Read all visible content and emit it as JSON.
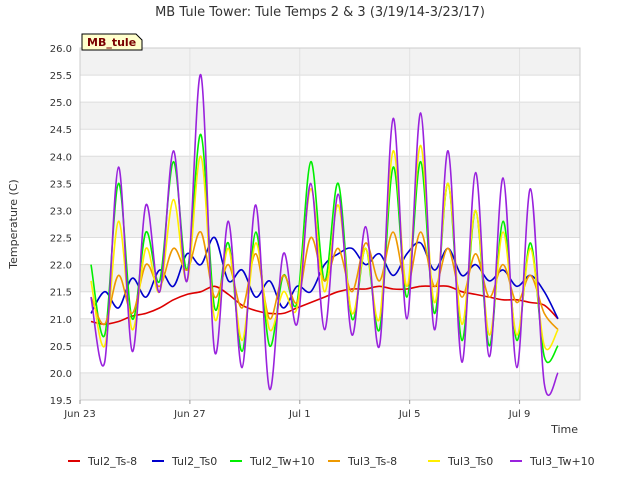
{
  "chart_data": {
    "type": "line",
    "title": "MB Tule Tower: Tule Temps 2 & 3 (3/19/14-3/23/17)",
    "badge": "MB_tule",
    "xlabel": "Time",
    "ylabel": "Temperature (C)",
    "ylim": [
      19.5,
      26.0
    ],
    "yticks": [
      19.5,
      20.0,
      20.5,
      21.0,
      21.5,
      22.0,
      22.5,
      23.0,
      23.5,
      24.0,
      24.5,
      25.0,
      25.5,
      26.0
    ],
    "ytick_labels": [
      "19.5",
      "20.0",
      "20.5",
      "21.0",
      "21.5",
      "22.0",
      "22.5",
      "23.0",
      "23.5",
      "24.0",
      "24.5",
      "25.0",
      "25.5",
      "26.0"
    ],
    "xlim": [
      0,
      18.2
    ],
    "xticks": [
      0,
      4,
      8,
      12,
      16
    ],
    "xtick_labels": [
      "Jun 23",
      "Jun 27",
      "Jul 1",
      "Jul 5",
      "Jul 9"
    ],
    "grid": true,
    "legend_position": "bottom",
    "series_x": [
      0.4,
      0.9,
      1.4,
      1.9,
      2.4,
      2.9,
      3.4,
      3.9,
      4.4,
      4.9,
      5.4,
      5.9,
      6.4,
      6.9,
      7.4,
      7.9,
      8.4,
      8.9,
      9.4,
      9.9,
      10.4,
      10.9,
      11.4,
      11.9,
      12.4,
      12.9,
      13.4,
      13.9,
      14.4,
      14.9,
      15.4,
      15.9,
      16.4,
      16.9,
      17.4
    ],
    "series": [
      {
        "name": "Tul2_Ts-8",
        "color": "#dd0000",
        "values": [
          20.95,
          20.9,
          20.95,
          21.05,
          21.1,
          21.2,
          21.35,
          21.45,
          21.5,
          21.6,
          21.45,
          21.25,
          21.15,
          21.1,
          21.1,
          21.2,
          21.3,
          21.4,
          21.5,
          21.55,
          21.55,
          21.6,
          21.55,
          21.55,
          21.6,
          21.6,
          21.6,
          21.5,
          21.45,
          21.4,
          21.35,
          21.35,
          21.3,
          21.25,
          21.0
        ]
      },
      {
        "name": "Tul2_Ts0",
        "color": "#0000cc",
        "values": [
          21.1,
          21.5,
          21.2,
          21.75,
          21.4,
          21.9,
          21.6,
          22.2,
          22.0,
          22.5,
          21.7,
          21.9,
          21.4,
          21.7,
          21.2,
          21.6,
          21.5,
          22.0,
          22.2,
          22.3,
          22.0,
          22.2,
          21.8,
          22.2,
          22.4,
          21.9,
          22.3,
          21.8,
          22.0,
          21.7,
          21.9,
          21.6,
          21.8,
          21.5,
          21.0
        ]
      },
      {
        "name": "Tul2_Tw+10",
        "color": "#00ee00",
        "values": [
          22.0,
          20.7,
          23.5,
          21.0,
          22.6,
          21.7,
          23.9,
          21.9,
          24.4,
          21.2,
          22.4,
          20.4,
          22.6,
          20.5,
          21.8,
          21.3,
          23.9,
          21.7,
          23.5,
          21.0,
          22.3,
          20.8,
          23.8,
          21.4,
          23.9,
          21.1,
          23.5,
          20.6,
          23.0,
          20.5,
          22.8,
          20.6,
          22.4,
          20.3,
          20.5
        ]
      },
      {
        "name": "Tul3_Ts-8",
        "color": "#ee9900",
        "values": [
          21.4,
          20.9,
          21.8,
          21.1,
          22.0,
          21.6,
          22.3,
          21.9,
          22.6,
          21.4,
          22.0,
          21.2,
          22.2,
          21.0,
          21.8,
          21.3,
          22.5,
          21.7,
          22.3,
          21.5,
          22.4,
          21.7,
          22.6,
          21.6,
          22.6,
          21.6,
          22.3,
          21.4,
          22.2,
          21.4,
          22.0,
          21.3,
          21.8,
          21.1,
          20.8
        ]
      },
      {
        "name": "Tul3_Ts0",
        "color": "#ffee00",
        "values": [
          21.7,
          20.5,
          22.8,
          20.8,
          22.3,
          21.5,
          23.2,
          21.7,
          24.0,
          21.0,
          22.3,
          20.6,
          22.4,
          20.8,
          21.5,
          21.2,
          23.4,
          21.5,
          23.1,
          21.1,
          22.3,
          21.0,
          24.1,
          21.6,
          24.2,
          21.3,
          23.5,
          20.9,
          23.0,
          20.7,
          22.6,
          20.7,
          22.3,
          20.5,
          20.8
        ]
      },
      {
        "name": "Tul3_Tw+10",
        "color": "#9922dd",
        "values": [
          21.4,
          20.2,
          23.8,
          20.4,
          23.1,
          21.5,
          24.1,
          21.7,
          25.5,
          20.4,
          22.8,
          20.1,
          23.1,
          19.7,
          22.2,
          20.9,
          23.5,
          20.8,
          23.3,
          20.7,
          22.7,
          20.5,
          24.7,
          21.0,
          24.8,
          20.8,
          24.1,
          20.2,
          23.7,
          20.3,
          23.6,
          20.1,
          23.4,
          19.8,
          20.0
        ]
      }
    ]
  }
}
